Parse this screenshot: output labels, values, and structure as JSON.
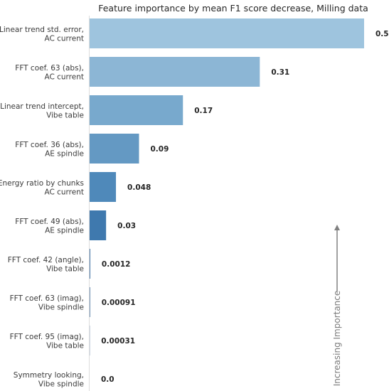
{
  "chart_data": {
    "type": "bar",
    "orientation": "horizontal",
    "title": "Feature importance by mean F1 score decrease, Milling data",
    "categories": [
      [
        "Linear trend std. error,",
        "AC current"
      ],
      [
        "FFT coef. 63 (abs),",
        "AC current"
      ],
      [
        "Linear trend intercept,",
        "Vibe table"
      ],
      [
        "FFT coef. 36 (abs),",
        "AE spindle"
      ],
      [
        "Energy ratio by chunks",
        "AC current"
      ],
      [
        "FFT coef. 49 (abs),",
        "AE spindle"
      ],
      [
        "FFT coef. 42 (angle),",
        "Vibe table"
      ],
      [
        "FFT coef. 63 (imag),",
        "Vibe spindle"
      ],
      [
        "FFT coef. 95 (imag),",
        "Vibe table"
      ],
      [
        "Symmetry looking,",
        "Vibe spindle"
      ]
    ],
    "values": [
      0.5,
      0.31,
      0.17,
      0.09,
      0.048,
      0.03,
      0.0012,
      0.00091,
      0.00031,
      0.0
    ],
    "value_labels": [
      "0.5",
      "0.31",
      "0.17",
      "0.09",
      "0.048",
      "0.03",
      "0.0012",
      "0.00091",
      "0.00031",
      "0.0"
    ],
    "bar_colors": [
      "#9ec4de",
      "#8cb6d5",
      "#78a9cd",
      "#6499c3",
      "#4f89ba",
      "#3f79ae",
      "#3b6fa4",
      "#386798",
      "#345e8d",
      "#305482"
    ],
    "xlim": [
      0,
      0.5
    ],
    "grid": false,
    "annotation": "Increasing Importance"
  }
}
